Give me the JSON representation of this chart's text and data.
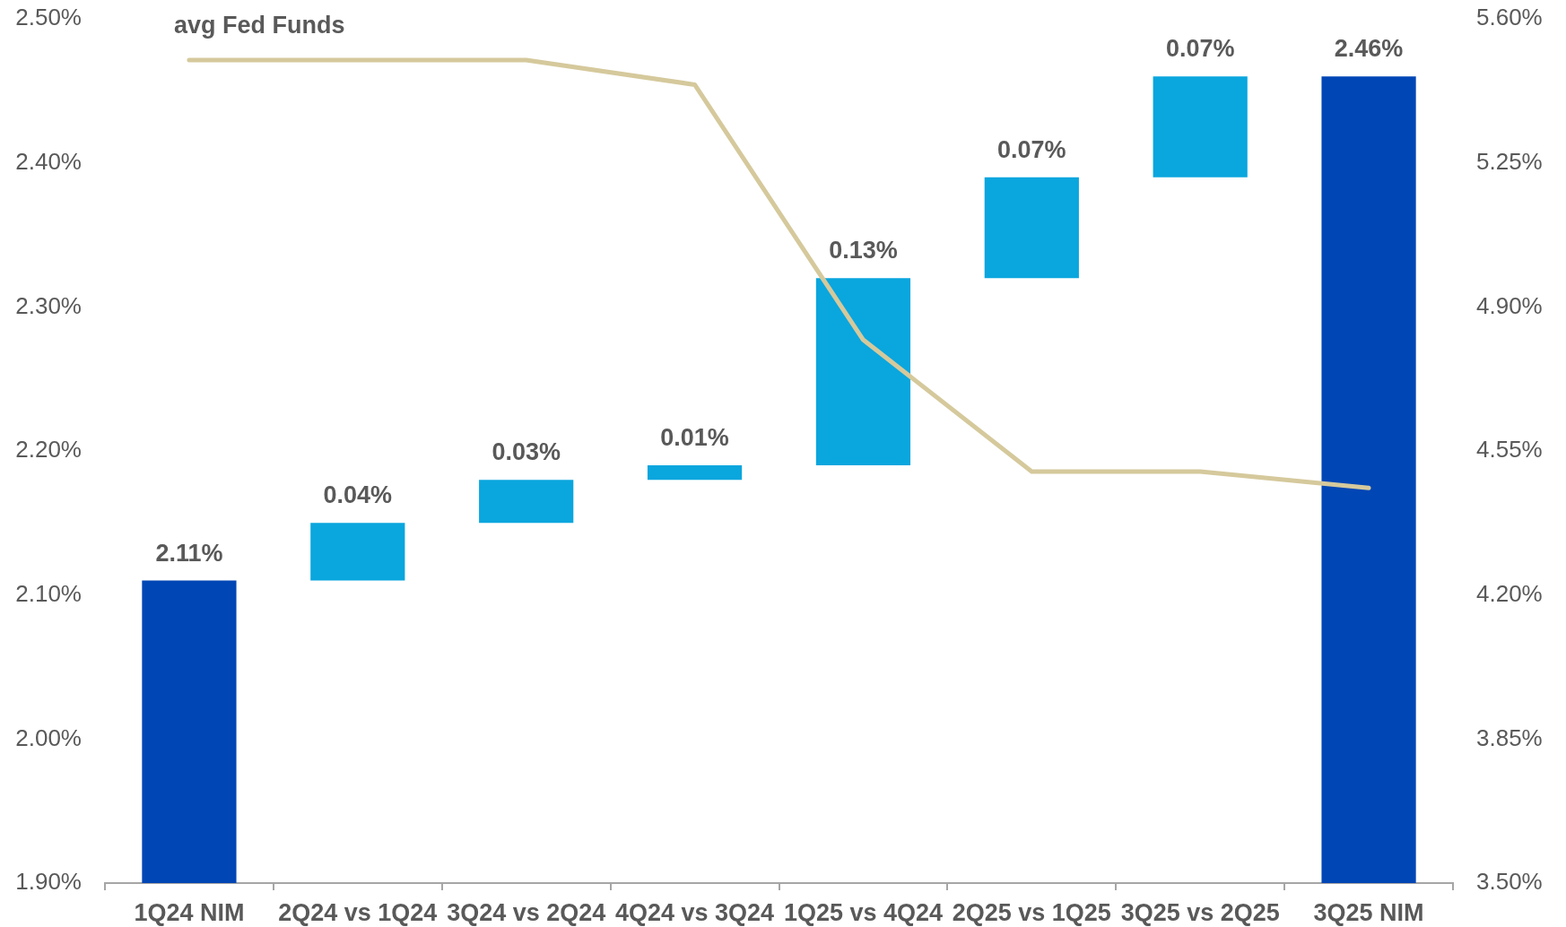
{
  "chart_data": {
    "type": "bar",
    "categories": [
      "1Q24 NIM",
      "2Q24 vs 1Q24",
      "3Q24 vs 2Q24",
      "4Q24 vs 3Q24",
      "1Q25 vs 4Q24",
      "2Q25 vs 1Q25",
      "3Q25 vs 2Q25",
      "3Q25 NIM"
    ],
    "series": [
      {
        "colors": [
          "#0046b5",
          "#0aa6de",
          "#0aa6de",
          "#0aa6de",
          "#0aa6de",
          "#0aa6de",
          "#0aa6de",
          "#0046b5"
        ],
        "values": [
          2.11,
          0.04,
          0.03,
          0.01,
          0.13,
          0.07,
          0.07,
          2.46
        ],
        "base": [
          null,
          2.11,
          2.15,
          2.18,
          2.19,
          2.32,
          2.39,
          null
        ],
        "value_labels": [
          "2.11%",
          "0.04%",
          "0.03%",
          "0.01%",
          "0.13%",
          "0.07%",
          "0.07%",
          "2.46%"
        ]
      },
      {
        "type": "line",
        "name": "avg Fed Funds",
        "color": "#d5c99c",
        "values": [
          5.5,
          5.5,
          5.5,
          5.44,
          4.82,
          4.5,
          4.5,
          4.46
        ],
        "axis": "y2"
      }
    ],
    "ylim": [
      1.9,
      2.5
    ],
    "yticks": [
      {
        "value": 1.9,
        "label": "1.90%"
      },
      {
        "value": 2.0,
        "label": "2.00%"
      },
      {
        "value": 2.1,
        "label": "2.10%"
      },
      {
        "value": 2.2,
        "label": "2.20%"
      },
      {
        "value": 2.3,
        "label": "2.30%"
      },
      {
        "value": 2.4,
        "label": "2.40%"
      },
      {
        "value": 2.5,
        "label": "2.50%"
      }
    ],
    "y2lim": [
      3.5,
      5.6
    ],
    "y2ticks": [
      {
        "value": 3.5,
        "label": "3.50%"
      },
      {
        "value": 3.85,
        "label": "3.85%"
      },
      {
        "value": 4.2,
        "label": "4.20%"
      },
      {
        "value": 4.55,
        "label": "4.55%"
      },
      {
        "value": 4.9,
        "label": "4.90%"
      },
      {
        "value": 5.25,
        "label": "5.25%"
      },
      {
        "value": 5.6,
        "label": "5.60%"
      }
    ],
    "grid": false,
    "legend": false,
    "marker": "none"
  }
}
